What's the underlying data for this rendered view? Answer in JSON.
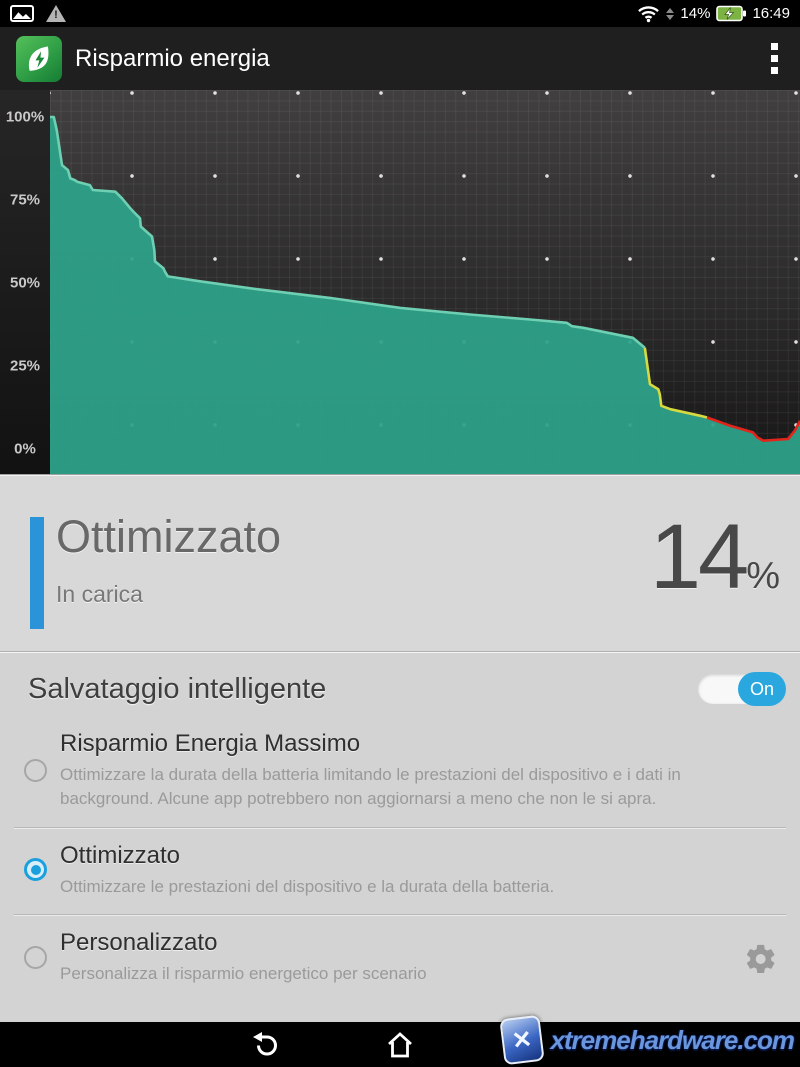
{
  "status_bar": {
    "time": "16:49",
    "battery_percent": "14%",
    "left_icons": [
      "gallery-notification",
      "warning"
    ]
  },
  "app_bar": {
    "title": "Risparmio energia"
  },
  "chart_data": {
    "type": "area",
    "title": "",
    "xlabel": "",
    "ylabel": "",
    "y_ticks": [
      "100%",
      "75%",
      "50%",
      "25%",
      "0%"
    ],
    "ylim": [
      0,
      100
    ],
    "grid": true,
    "legend": false,
    "colors": {
      "fill": "#2ea189",
      "line_normal": "#6fcfb2",
      "line_low": "#d6d93f",
      "line_critical": "#e1251b",
      "plot_bg_top": "#413f3f",
      "plot_bg_bottom": "#171616"
    },
    "segments": [
      {
        "name": "normal",
        "points": [
          [
            0,
            100
          ],
          [
            0.5,
            100
          ],
          [
            0.9,
            96
          ],
          [
            1.6,
            85.5
          ],
          [
            2.4,
            84
          ],
          [
            2.7,
            81.5
          ],
          [
            3.3,
            81
          ],
          [
            3.6,
            80.5
          ],
          [
            5.3,
            79.5
          ],
          [
            5.7,
            78
          ],
          [
            8.7,
            77.5
          ],
          [
            9.6,
            75.5
          ],
          [
            10.7,
            72.5
          ],
          [
            11.1,
            71.5
          ],
          [
            12,
            69.5
          ],
          [
            12.1,
            67
          ],
          [
            13.6,
            64
          ],
          [
            13.9,
            60
          ],
          [
            14,
            56.5
          ],
          [
            15.1,
            54.5
          ],
          [
            15.3,
            53.5
          ],
          [
            15.7,
            52
          ],
          [
            20,
            50.5
          ],
          [
            28,
            48
          ],
          [
            37.3,
            45.5
          ],
          [
            46.7,
            42.5
          ],
          [
            56,
            40.5
          ],
          [
            64,
            39
          ],
          [
            68.9,
            38
          ],
          [
            69.6,
            37
          ],
          [
            71.1,
            36.5
          ],
          [
            77.7,
            33.5
          ],
          [
            79.3,
            30.5
          ]
        ]
      },
      {
        "name": "low",
        "points": [
          [
            79.3,
            30.5
          ],
          [
            80,
            19.5
          ],
          [
            81.1,
            18
          ],
          [
            81.3,
            16.5
          ],
          [
            81.5,
            13
          ],
          [
            82.7,
            12
          ],
          [
            86.7,
            10
          ],
          [
            87.6,
            9.5
          ]
        ]
      },
      {
        "name": "critical",
        "points": [
          [
            87.6,
            9.5
          ],
          [
            90.7,
            7
          ],
          [
            93.7,
            5
          ],
          [
            94.3,
            3.5
          ],
          [
            95.1,
            2.5
          ],
          [
            98.4,
            3
          ],
          [
            99.3,
            5.5
          ],
          [
            100,
            8.5
          ]
        ]
      }
    ]
  },
  "status_card": {
    "accent_color": "#2b93d8",
    "mode": "Ottimizzato",
    "state": "In carica",
    "percent_value": "14",
    "percent_unit": "%"
  },
  "smart_saving": {
    "title": "Salvataggio intelligente",
    "toggle": {
      "state": "on",
      "label": "On"
    },
    "options": [
      {
        "title": "Risparmio Energia Massimo",
        "description": "Ottimizzare la durata della batteria limitando le prestazioni del dispositivo e i dati in background. Alcune app potrebbero non aggiornarsi a meno che non le si apra.",
        "selected": false,
        "has_settings": false
      },
      {
        "title": "Ottimizzato",
        "description": "Ottimizzare le prestazioni del dispositivo e la durata della batteria.",
        "selected": true,
        "has_settings": false
      },
      {
        "title": "Personalizzato",
        "description": "Personalizza il risparmio energetico per scenario",
        "selected": false,
        "has_settings": true
      }
    ]
  },
  "nav_bar": {
    "watermark": "xtremehardware.com",
    "watermark_glyph": "✕"
  }
}
